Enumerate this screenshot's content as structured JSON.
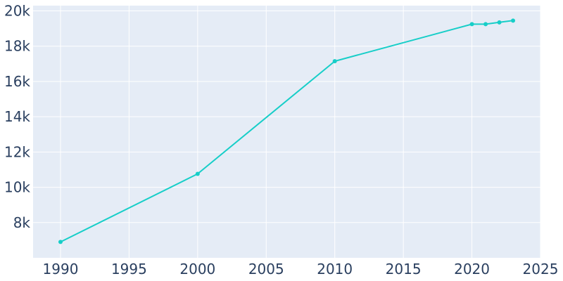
{
  "chart_data": {
    "type": "line",
    "title": "",
    "xlabel": "",
    "ylabel": "",
    "x": [
      1990,
      2000,
      2010,
      2020,
      2021,
      2022,
      2023
    ],
    "series": [
      {
        "values": [
          6900,
          10760,
          17150,
          19250,
          19250,
          19350,
          19450
        ]
      }
    ],
    "xlim": [
      1988,
      2025
    ],
    "ylim": [
      6000,
      20300
    ],
    "xticks": [
      1990,
      1995,
      2000,
      2005,
      2010,
      2015,
      2020,
      2025
    ],
    "xtick_labels": [
      "1990",
      "1995",
      "2000",
      "2005",
      "2010",
      "2015",
      "2020",
      "2025"
    ],
    "yticks": [
      8000,
      10000,
      12000,
      14000,
      16000,
      18000,
      20000
    ],
    "ytick_labels": [
      "8k",
      "10k",
      "12k",
      "14k",
      "16k",
      "18k",
      "20k"
    ],
    "grid": true,
    "legend": "none"
  },
  "colors": {
    "plot_background": "#e5ecf6",
    "grid": "#ffffff",
    "series_line": "#17cec8",
    "tick_text": "#2a3f5f"
  }
}
